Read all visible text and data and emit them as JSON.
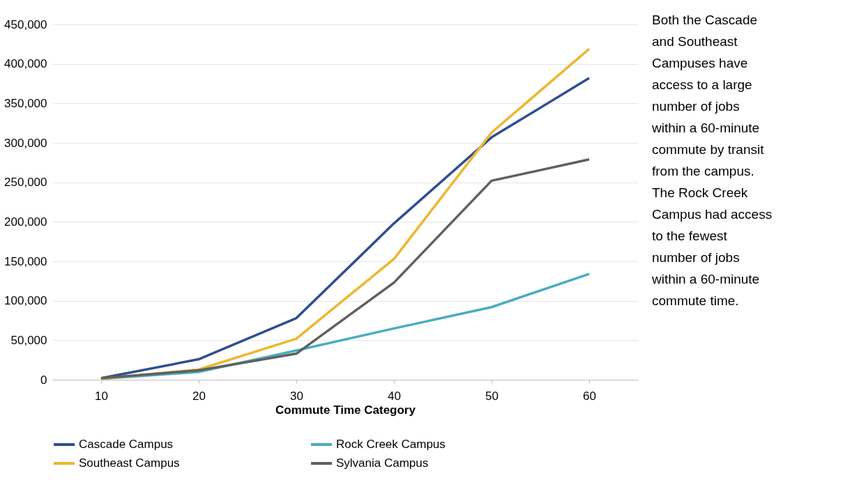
{
  "chart_data": {
    "type": "line",
    "xlabel": "Commute Time Category",
    "categories": [
      "10",
      "20",
      "30",
      "40",
      "50",
      "60"
    ],
    "series": [
      {
        "name": "Cascade Campus",
        "color": "#2e4f8f",
        "values": [
          2000,
          26000,
          78000,
          198000,
          307000,
          382000
        ]
      },
      {
        "name": "Rock Creek Campus",
        "color": "#4aacc0",
        "values": [
          1000,
          10000,
          37000,
          65000,
          92000,
          134000
        ]
      },
      {
        "name": "Southeast Campus",
        "color": "#ecb731",
        "values": [
          1000,
          13000,
          52000,
          153000,
          313000,
          419000
        ]
      },
      {
        "name": "Sylvania Campus",
        "color": "#5f5f5f",
        "values": [
          2000,
          12000,
          33000,
          123000,
          252000,
          279000
        ]
      }
    ],
    "ylim": [
      0,
      450000
    ],
    "yticks": [
      0,
      {
        "value": 50000,
        "label": "50,000"
      },
      {
        "value": 100000,
        "label": "100,000"
      },
      {
        "value": 150000,
        "label": "150,000"
      },
      {
        "value": 200000,
        "label": "200,000"
      },
      {
        "value": 250000,
        "label": "250,000"
      },
      {
        "value": 300000,
        "label": "300,000"
      },
      {
        "value": 350000,
        "label": "350,000"
      },
      {
        "value": 400000,
        "label": "400,000"
      },
      {
        "value": 450000,
        "label": "450,000"
      }
    ],
    "grid": "y",
    "legend": "bottom",
    "line_style": "solid",
    "marker": "none",
    "annotations": [
      "Both the Cascade and Southeast Campuses have access to a large number of jobs within a 60-minute commute by transit from the campus. The Rock Creek Campus had access to the fewest number of jobs within a 60-minute commute time."
    ]
  }
}
